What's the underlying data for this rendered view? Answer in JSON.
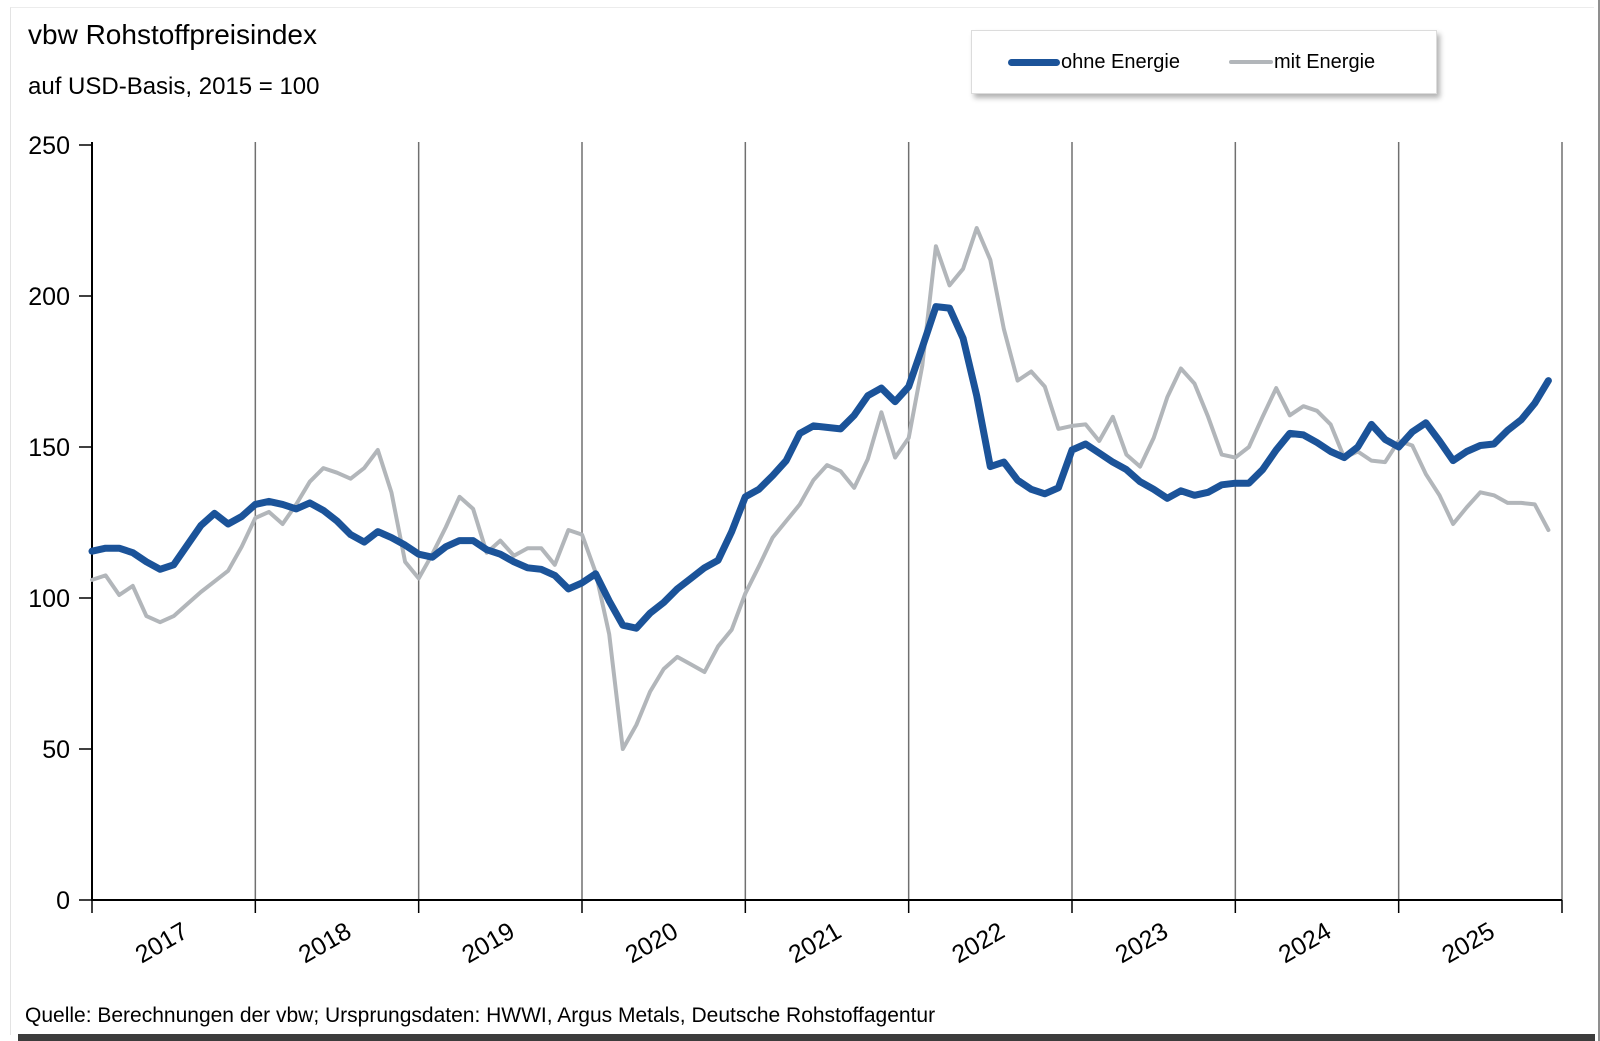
{
  "header": {
    "title": "vbw Rohstoffpreisindex",
    "subtitle": "auf USD-Basis, 2015 = 100"
  },
  "legend": {
    "position": "top-right",
    "items": [
      {
        "label": "ohne Energie",
        "color": "#1B5399",
        "thickness": 7
      },
      {
        "label": "mit Energie",
        "color": "#B2B6BA",
        "thickness": 4
      }
    ]
  },
  "footer": {
    "source": "Quelle: Berechnungen der vbw; Ursprungsdaten: HWWI, Argus Metals, Deutsche Rohstoffagentur"
  },
  "colors": {
    "axis": "#000000",
    "gridline": "#707070",
    "text": "#000000",
    "bottom_bar": "#3C3C3C"
  },
  "chart_data": {
    "type": "line",
    "title": "vbw Rohstoffpreisindex",
    "subtitle": "auf USD-Basis, 2015 = 100",
    "interval": "monthly",
    "x_start": "2017-01",
    "x_end": "2025-12",
    "x_tick_labels": [
      "2017",
      "2018",
      "2019",
      "2020",
      "2021",
      "2022",
      "2023",
      "2024",
      "2025"
    ],
    "year_gridline_month_indices": [
      12,
      24,
      36,
      48,
      60,
      72,
      84,
      96,
      108
    ],
    "ylim": [
      0,
      250
    ],
    "y_ticks": [
      0,
      50,
      100,
      150,
      200,
      250
    ],
    "grid": "vertical-year-lines-only",
    "legend_position": "top-right",
    "series": [
      {
        "name": "ohne Energie",
        "color": "#1B5399",
        "stroke_width": 7,
        "values": [
          115.5,
          116.5,
          116.5,
          115,
          112,
          109.5,
          111,
          117.5,
          124,
          128,
          124.5,
          127,
          131,
          132,
          131,
          129.5,
          131.5,
          129,
          125.5,
          121,
          118.5,
          122,
          120,
          117.5,
          114.5,
          113.5,
          117,
          119,
          119,
          116,
          114.5,
          112,
          110,
          109.5,
          107.5,
          103,
          105,
          108,
          99,
          91,
          90,
          95,
          98.5,
          103,
          106.5,
          110,
          112.5,
          122,
          133.5,
          136,
          140.5,
          145.5,
          154.5,
          157,
          156.5,
          156,
          160.5,
          167,
          169.5,
          165,
          170,
          183,
          196.5,
          196,
          186,
          167,
          143.5,
          145,
          139,
          136,
          134.5,
          136.5,
          149,
          151,
          148,
          145,
          142.5,
          138.5,
          136,
          133,
          135.5,
          134,
          135,
          137.5,
          138,
          138,
          142.5,
          149,
          154.5,
          154,
          151.5,
          148.5,
          146.5,
          150,
          157.5,
          152.5,
          150,
          155,
          158,
          152,
          145.5,
          148.5,
          150.5,
          151,
          155.5,
          159,
          164.5,
          172
        ]
      },
      {
        "name": "mit Energie",
        "color": "#B2B6BA",
        "stroke_width": 4,
        "values": [
          106,
          107.5,
          101,
          104,
          94,
          92,
          94,
          98,
          102,
          105.5,
          109,
          117,
          126.5,
          128.5,
          124.5,
          131,
          138.5,
          143,
          141.5,
          139.5,
          143,
          149,
          135,
          112,
          106.5,
          114.5,
          123.5,
          133.5,
          129.5,
          115,
          119,
          114,
          116.5,
          116.5,
          111,
          122.5,
          121,
          108.5,
          88,
          50,
          58,
          69,
          76.5,
          80.5,
          78,
          75.5,
          84,
          89.5,
          101.5,
          110.5,
          120,
          125.5,
          131,
          139,
          144,
          142,
          136.5,
          146,
          161.5,
          146.5,
          153,
          177,
          216.5,
          203.5,
          209,
          222.5,
          212,
          189,
          172,
          175,
          170,
          156,
          157,
          157.5,
          152,
          160,
          147.5,
          143.5,
          153,
          166.5,
          176,
          171,
          160,
          147.5,
          146.5,
          150,
          160,
          169.5,
          160.5,
          163.5,
          162,
          157.5,
          146.5,
          148.5,
          145.5,
          145,
          152,
          150.5,
          141,
          134,
          124.5,
          130,
          135,
          134,
          131.5,
          131.5,
          131,
          122.5
        ]
      }
    ]
  }
}
